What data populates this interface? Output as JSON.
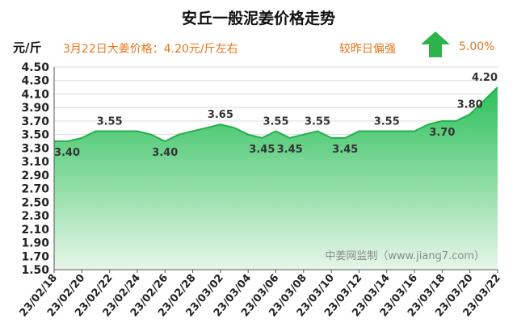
{
  "title": "安丘一般泥姜价格走势",
  "unit_label": "元/斤",
  "headline": "3月22日大姜价格：4.20元/斤左右",
  "comparison_label": "较昨日偏强",
  "change_pct": "5.00%",
  "trend": "up-arrow-icon",
  "colors": {
    "accent": "#e8751a",
    "arrow": "#2db34a",
    "line": "#21b04b",
    "fill_top": "#2cc05a",
    "fill_bottom": "#e6f6e8",
    "grid": "#dcdcdc"
  },
  "chart_data": {
    "type": "area",
    "title": "安丘一般泥姜价格走势",
    "ylabel": "元/斤",
    "ylim": [
      1.5,
      4.5
    ],
    "yticks": [
      "1.50",
      "1.70",
      "1.90",
      "2.10",
      "2.30",
      "2.50",
      "2.70",
      "2.90",
      "3.10",
      "3.30",
      "3.50",
      "3.70",
      "3.90",
      "4.10",
      "4.30",
      "4.50"
    ],
    "xticks": [
      "23/02/18",
      "23/02/20",
      "23/02/22",
      "23/02/24",
      "23/02/26",
      "23/02/28",
      "23/03/02",
      "23/03/04",
      "23/03/06",
      "23/03/08",
      "23/03/10",
      "23/03/12",
      "23/03/14",
      "23/03/16",
      "23/03/18",
      "23/03/20",
      "23/03/22"
    ],
    "grid": true,
    "series": [
      {
        "values": [
          3.4,
          3.4,
          3.45,
          3.55,
          3.55,
          3.55,
          3.55,
          3.5,
          3.4,
          3.5,
          3.55,
          3.6,
          3.65,
          3.6,
          3.5,
          3.45,
          3.55,
          3.45,
          3.5,
          3.55,
          3.45,
          3.45,
          3.55,
          3.55,
          3.55,
          3.55,
          3.55,
          3.65,
          3.7,
          3.7,
          3.8,
          4.0,
          4.2
        ]
      }
    ],
    "data_labels": [
      {
        "index": 0,
        "text": "3.40",
        "pos": "below"
      },
      {
        "index": 4,
        "text": "3.55",
        "pos": "above"
      },
      {
        "index": 8,
        "text": "3.40",
        "pos": "below"
      },
      {
        "index": 12,
        "text": "3.65",
        "pos": "above"
      },
      {
        "index": 15,
        "text": "3.45",
        "pos": "below"
      },
      {
        "index": 16,
        "text": "3.55",
        "pos": "above"
      },
      {
        "index": 17,
        "text": "3.45",
        "pos": "below"
      },
      {
        "index": 19,
        "text": "3.55",
        "pos": "above"
      },
      {
        "index": 21,
        "text": "3.45",
        "pos": "below"
      },
      {
        "index": 24,
        "text": "3.55",
        "pos": "above"
      },
      {
        "index": 28,
        "text": "3.70",
        "pos": "below"
      },
      {
        "index": 30,
        "text": "3.80",
        "pos": "above"
      },
      {
        "index": 32,
        "text": "4.20",
        "pos": "above"
      }
    ],
    "watermark": "中姜网监制（www.jiang7.com）"
  }
}
